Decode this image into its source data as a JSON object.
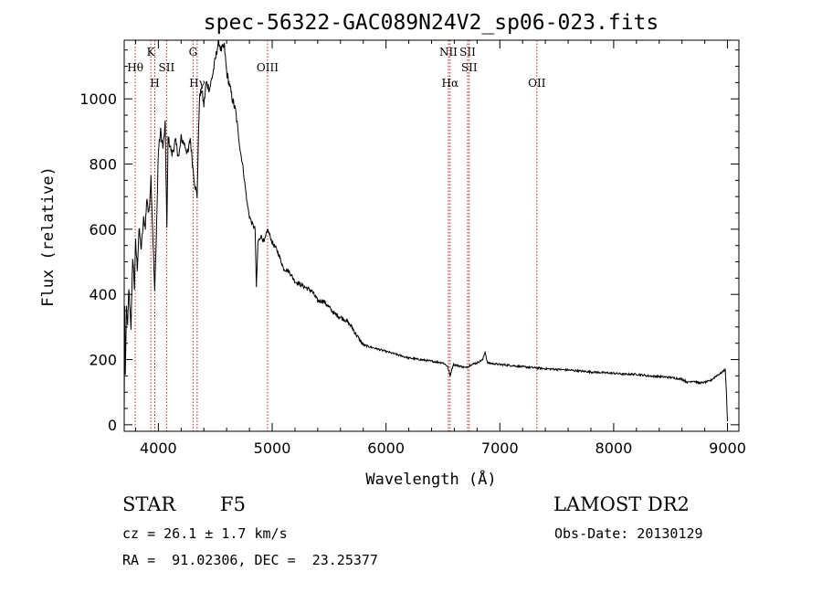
{
  "chart_data": {
    "type": "line",
    "title": "spec-56322-GAC089N24V2_sp06-023.fits",
    "xlabel": "Wavelength (Å)",
    "ylabel": "Flux (relative)",
    "xlim": [
      3700,
      9100
    ],
    "ylim": [
      -20,
      1180
    ],
    "x_ticks": [
      4000,
      5000,
      6000,
      7000,
      8000,
      9000
    ],
    "y_ticks": [
      0,
      200,
      400,
      600,
      800,
      1000
    ],
    "spectrum": [
      [
        3700,
        30
      ],
      [
        3705,
        370
      ],
      [
        3710,
        150
      ],
      [
        3720,
        360
      ],
      [
        3730,
        300
      ],
      [
        3740,
        420
      ],
      [
        3760,
        300
      ],
      [
        3775,
        520
      ],
      [
        3790,
        420
      ],
      [
        3800,
        560
      ],
      [
        3815,
        480
      ],
      [
        3830,
        600
      ],
      [
        3850,
        540
      ],
      [
        3870,
        630
      ],
      [
        3885,
        610
      ],
      [
        3900,
        700
      ],
      [
        3915,
        640
      ],
      [
        3935,
        760
      ],
      [
        3950,
        600
      ],
      [
        3968,
        400
      ],
      [
        3985,
        620
      ],
      [
        4000,
        840
      ],
      [
        4020,
        900
      ],
      [
        4040,
        850
      ],
      [
        4060,
        920
      ],
      [
        4075,
        600
      ],
      [
        4085,
        880
      ],
      [
        4100,
        860
      ],
      [
        4120,
        830
      ],
      [
        4150,
        870
      ],
      [
        4180,
        820
      ],
      [
        4200,
        880
      ],
      [
        4230,
        860
      ],
      [
        4260,
        830
      ],
      [
        4280,
        880
      ],
      [
        4300,
        800
      ],
      [
        4320,
        740
      ],
      [
        4340,
        700
      ],
      [
        4360,
        1000
      ],
      [
        4380,
        1030
      ],
      [
        4400,
        980
      ],
      [
        4420,
        1050
      ],
      [
        4450,
        1030
      ],
      [
        4480,
        1080
      ],
      [
        4500,
        1120
      ],
      [
        4530,
        1180
      ],
      [
        4550,
        1150
      ],
      [
        4580,
        1160
      ],
      [
        4600,
        1080
      ],
      [
        4620,
        1050
      ],
      [
        4650,
        1000
      ],
      [
        4680,
        960
      ],
      [
        4700,
        900
      ],
      [
        4720,
        840
      ],
      [
        4740,
        800
      ],
      [
        4760,
        740
      ],
      [
        4780,
        680
      ],
      [
        4800,
        640
      ],
      [
        4820,
        620
      ],
      [
        4850,
        600
      ],
      [
        4861,
        420
      ],
      [
        4875,
        560
      ],
      [
        4900,
        580
      ],
      [
        4930,
        560
      ],
      [
        4960,
        600
      ],
      [
        5000,
        560
      ],
      [
        5050,
        530
      ],
      [
        5100,
        480
      ],
      [
        5150,
        470
      ],
      [
        5200,
        440
      ],
      [
        5250,
        430
      ],
      [
        5300,
        420
      ],
      [
        5350,
        410
      ],
      [
        5400,
        380
      ],
      [
        5450,
        380
      ],
      [
        5500,
        360
      ],
      [
        5550,
        340
      ],
      [
        5600,
        330
      ],
      [
        5650,
        320
      ],
      [
        5700,
        300
      ],
      [
        5750,
        270
      ],
      [
        5800,
        245
      ],
      [
        5850,
        240
      ],
      [
        5900,
        235
      ],
      [
        6000,
        225
      ],
      [
        6100,
        215
      ],
      [
        6200,
        205
      ],
      [
        6300,
        200
      ],
      [
        6400,
        195
      ],
      [
        6500,
        190
      ],
      [
        6540,
        180
      ],
      [
        6563,
        150
      ],
      [
        6590,
        185
      ],
      [
        6650,
        180
      ],
      [
        6700,
        175
      ],
      [
        6750,
        185
      ],
      [
        6800,
        190
      ],
      [
        6850,
        200
      ],
      [
        6870,
        225
      ],
      [
        6890,
        190
      ],
      [
        7000,
        185
      ],
      [
        7100,
        182
      ],
      [
        7200,
        178
      ],
      [
        7300,
        175
      ],
      [
        7400,
        172
      ],
      [
        7500,
        170
      ],
      [
        7600,
        168
      ],
      [
        7700,
        165
      ],
      [
        7800,
        162
      ],
      [
        7900,
        160
      ],
      [
        8000,
        158
      ],
      [
        8100,
        155
      ],
      [
        8200,
        155
      ],
      [
        8300,
        150
      ],
      [
        8400,
        148
      ],
      [
        8500,
        145
      ],
      [
        8600,
        140
      ],
      [
        8650,
        130
      ],
      [
        8700,
        135
      ],
      [
        8750,
        128
      ],
      [
        8800,
        130
      ],
      [
        8850,
        135
      ],
      [
        8900,
        150
      ],
      [
        8950,
        160
      ],
      [
        8980,
        170
      ],
      [
        8990,
        100
      ],
      [
        9000,
        10
      ]
    ],
    "line_markers": [
      {
        "label": "Hθ",
        "wavelength": 3797,
        "row": "low"
      },
      {
        "label": "K",
        "wavelength": 3934,
        "row": "top"
      },
      {
        "label": "H",
        "wavelength": 3969,
        "row": "bottom"
      },
      {
        "label": "SII",
        "wavelength": 4072,
        "row": "low"
      },
      {
        "label": "G",
        "wavelength": 4305,
        "row": "top"
      },
      {
        "label": "Hγ",
        "wavelength": 4341,
        "row": "bottom"
      },
      {
        "label": "OIII",
        "wavelength": 4959,
        "row": "low"
      },
      {
        "label": "NII",
        "wavelength": 6548,
        "row": "top"
      },
      {
        "label": "Hα",
        "wavelength": 6563,
        "row": "bottom"
      },
      {
        "label": "SII",
        "wavelength": 6717,
        "row": "top"
      },
      {
        "label": "SII",
        "wavelength": 6731,
        "row": "low"
      },
      {
        "label": "OII",
        "wavelength": 7325,
        "row": "bottom"
      }
    ],
    "colors": {
      "spectrum": "#000000",
      "marker": "#b22222",
      "axes": "#000000"
    }
  },
  "info": {
    "class_label": "STAR",
    "subclass": "F5",
    "survey": "LAMOST DR2",
    "redshift": "cz = 26.1 ± 1.7 km/s",
    "obs_date": "Obs-Date: 20130129",
    "coords": "RA =  91.02306, DEC =  23.25377"
  }
}
